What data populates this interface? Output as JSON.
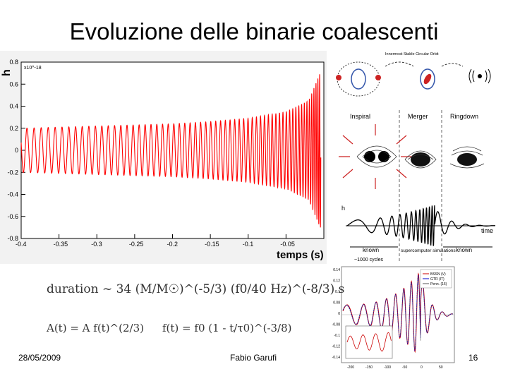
{
  "slide": {
    "title": "Evoluzione delle binarie coalescenti",
    "date": "28/05/2009",
    "author": "Fabio Garufi",
    "page_number": "16"
  },
  "chart_data": [
    {
      "type": "line",
      "xlabel": "temps (s)",
      "ylabel": "h",
      "y_multiplier": "x10^-18",
      "xlim": [
        -0.4,
        0.0
      ],
      "ylim": [
        -0.8,
        0.8
      ],
      "x_ticks": [
        "-0.4",
        "-0.35",
        "-0.3",
        "-0.25",
        "-0.2",
        "-0.15",
        "-0.1",
        "-0.05"
      ],
      "y_ticks": [
        "0.8",
        "0.6",
        "0.4",
        "0.2",
        "0",
        "-0.2",
        "-0.4",
        "-0.6",
        "-0.8"
      ],
      "grid": false,
      "series": [
        {
          "color": "#ff0000",
          "x": [
            -0.4,
            -0.35,
            -0.3,
            -0.25,
            -0.2,
            -0.15,
            -0.1,
            -0.05,
            -0.02,
            -0.005
          ],
          "amplitude": [
            0.2,
            0.21,
            0.22,
            0.23,
            0.24,
            0.26,
            0.29,
            0.35,
            0.45,
            0.7
          ]
        }
      ]
    },
    {
      "type": "diagram",
      "top_label": "Innermost Stable Circular Orbit",
      "phases": [
        "Inspiral",
        "Merger",
        "Ringdown"
      ],
      "xlabel": "time",
      "ylabel": "h",
      "bottom_labels": [
        "known",
        "supercomputer simulations",
        "known"
      ],
      "cycles_note": "~1000 cycles"
    },
    {
      "type": "line",
      "x_ticks": [
        "-200",
        "-150",
        "-100",
        "-50",
        "0",
        "50"
      ],
      "y_ticks": [
        "0.14",
        "0.12",
        "0.1",
        "0.08",
        "0",
        "-0.08",
        "-0.1",
        "-0.12",
        "-0.14"
      ],
      "legend": [
        "BSSN (V)",
        "GTR (IT)",
        "Penn. (16)"
      ],
      "series": [
        {
          "color": "#cc0000"
        },
        {
          "color": "#0000cc"
        },
        {
          "color": "#555555"
        }
      ]
    }
  ],
  "formulas": {
    "duration": "duration ~ 34 (M/M☉)^(-5/3) (f0/40 Hz)^(-8/3) s",
    "amplitude": "A(t) = A f(t)^(2/3)",
    "frequency": "f(t) = f0 (1 - t/τ0)^(-3/8)"
  }
}
